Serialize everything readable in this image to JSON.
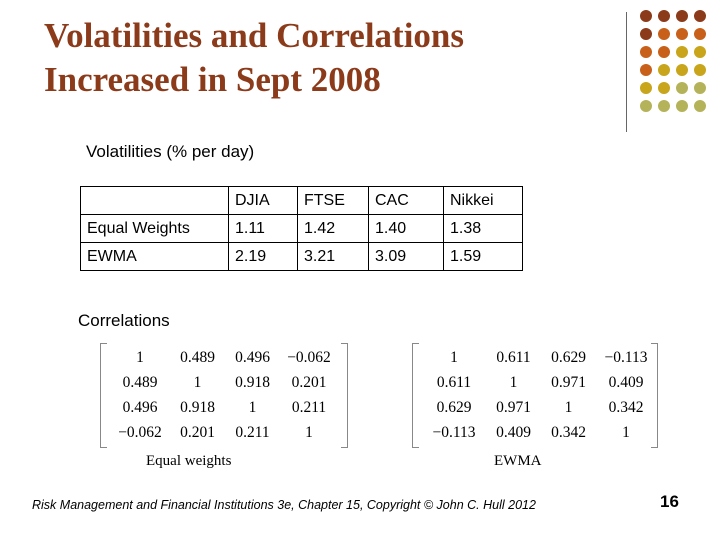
{
  "title_line1": "Volatilities and Correlations",
  "title_line2": "Increased in Sept 2008",
  "volatilities_heading": "Volatilities (% per day)",
  "volatility_table": {
    "headers": [
      "",
      "DJIA",
      "FTSE",
      "CAC",
      "Nikkei"
    ],
    "rows": [
      [
        "Equal Weights",
        "1.11",
        "1.42",
        "1.40",
        "1.38"
      ],
      [
        "EWMA",
        "2.19",
        "3.21",
        "3.09",
        "1.59"
      ]
    ]
  },
  "correlations_heading": "Correlations",
  "equal_weights_matrix": {
    "label": "Equal weights",
    "rows": [
      [
        "1",
        "0.489",
        "0.496",
        "−0.062"
      ],
      [
        "0.489",
        "1",
        "0.918",
        "0.201"
      ],
      [
        "0.496",
        "0.918",
        "1",
        "0.211"
      ],
      [
        "−0.062",
        "0.201",
        "0.211",
        "1"
      ]
    ]
  },
  "ewma_matrix": {
    "label": "EWMA",
    "rows": [
      [
        "1",
        "0.611",
        "0.629",
        "−0.113"
      ],
      [
        "0.611",
        "1",
        "0.971",
        "0.409"
      ],
      [
        "0.629",
        "0.971",
        "1",
        "0.342"
      ],
      [
        "−0.113",
        "0.409",
        "0.342",
        "1"
      ]
    ]
  },
  "footer": "Risk Management and Financial Institutions 3e, Chapter 15,  Copyright © John C. Hull 2012",
  "page_number": "16",
  "colors": {
    "title": "#8b3a1a",
    "dot_dark": "#8b3a1a",
    "dot_orange": "#c8601a",
    "dot_gold": "#c8a51a",
    "dot_olive": "#b5b35a"
  }
}
